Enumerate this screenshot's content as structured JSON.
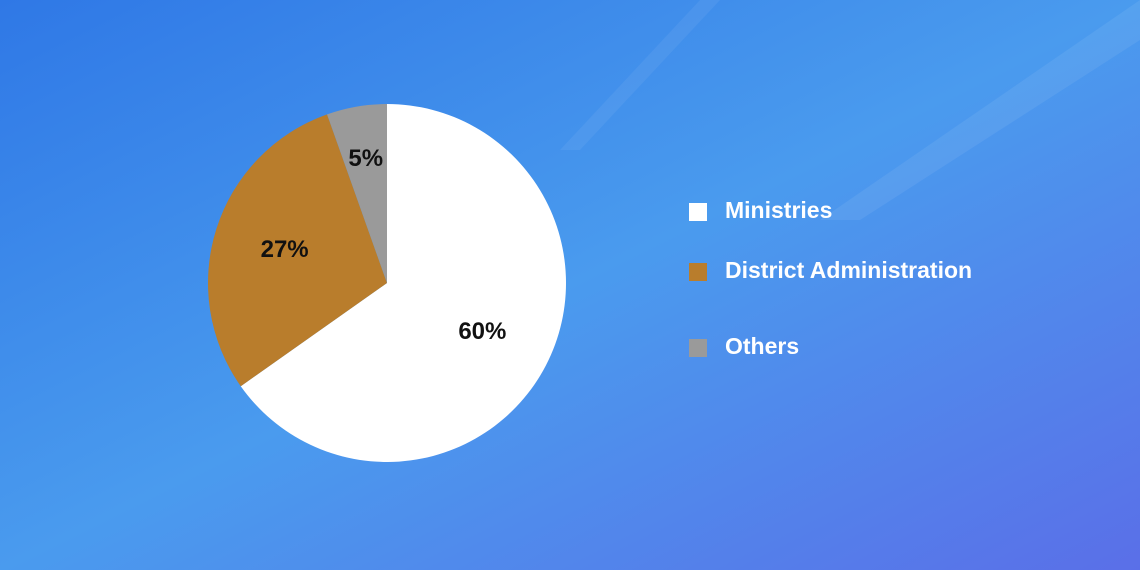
{
  "chart_data": {
    "type": "pie",
    "categories": [
      "Ministries",
      "District Administration",
      "Others"
    ],
    "values": [
      60,
      27,
      5
    ],
    "value_labels": [
      "60%",
      "27%",
      "5%"
    ],
    "colors": [
      "#ffffff",
      "#b97d2c",
      "#9a9a9a"
    ],
    "legend": "right"
  }
}
